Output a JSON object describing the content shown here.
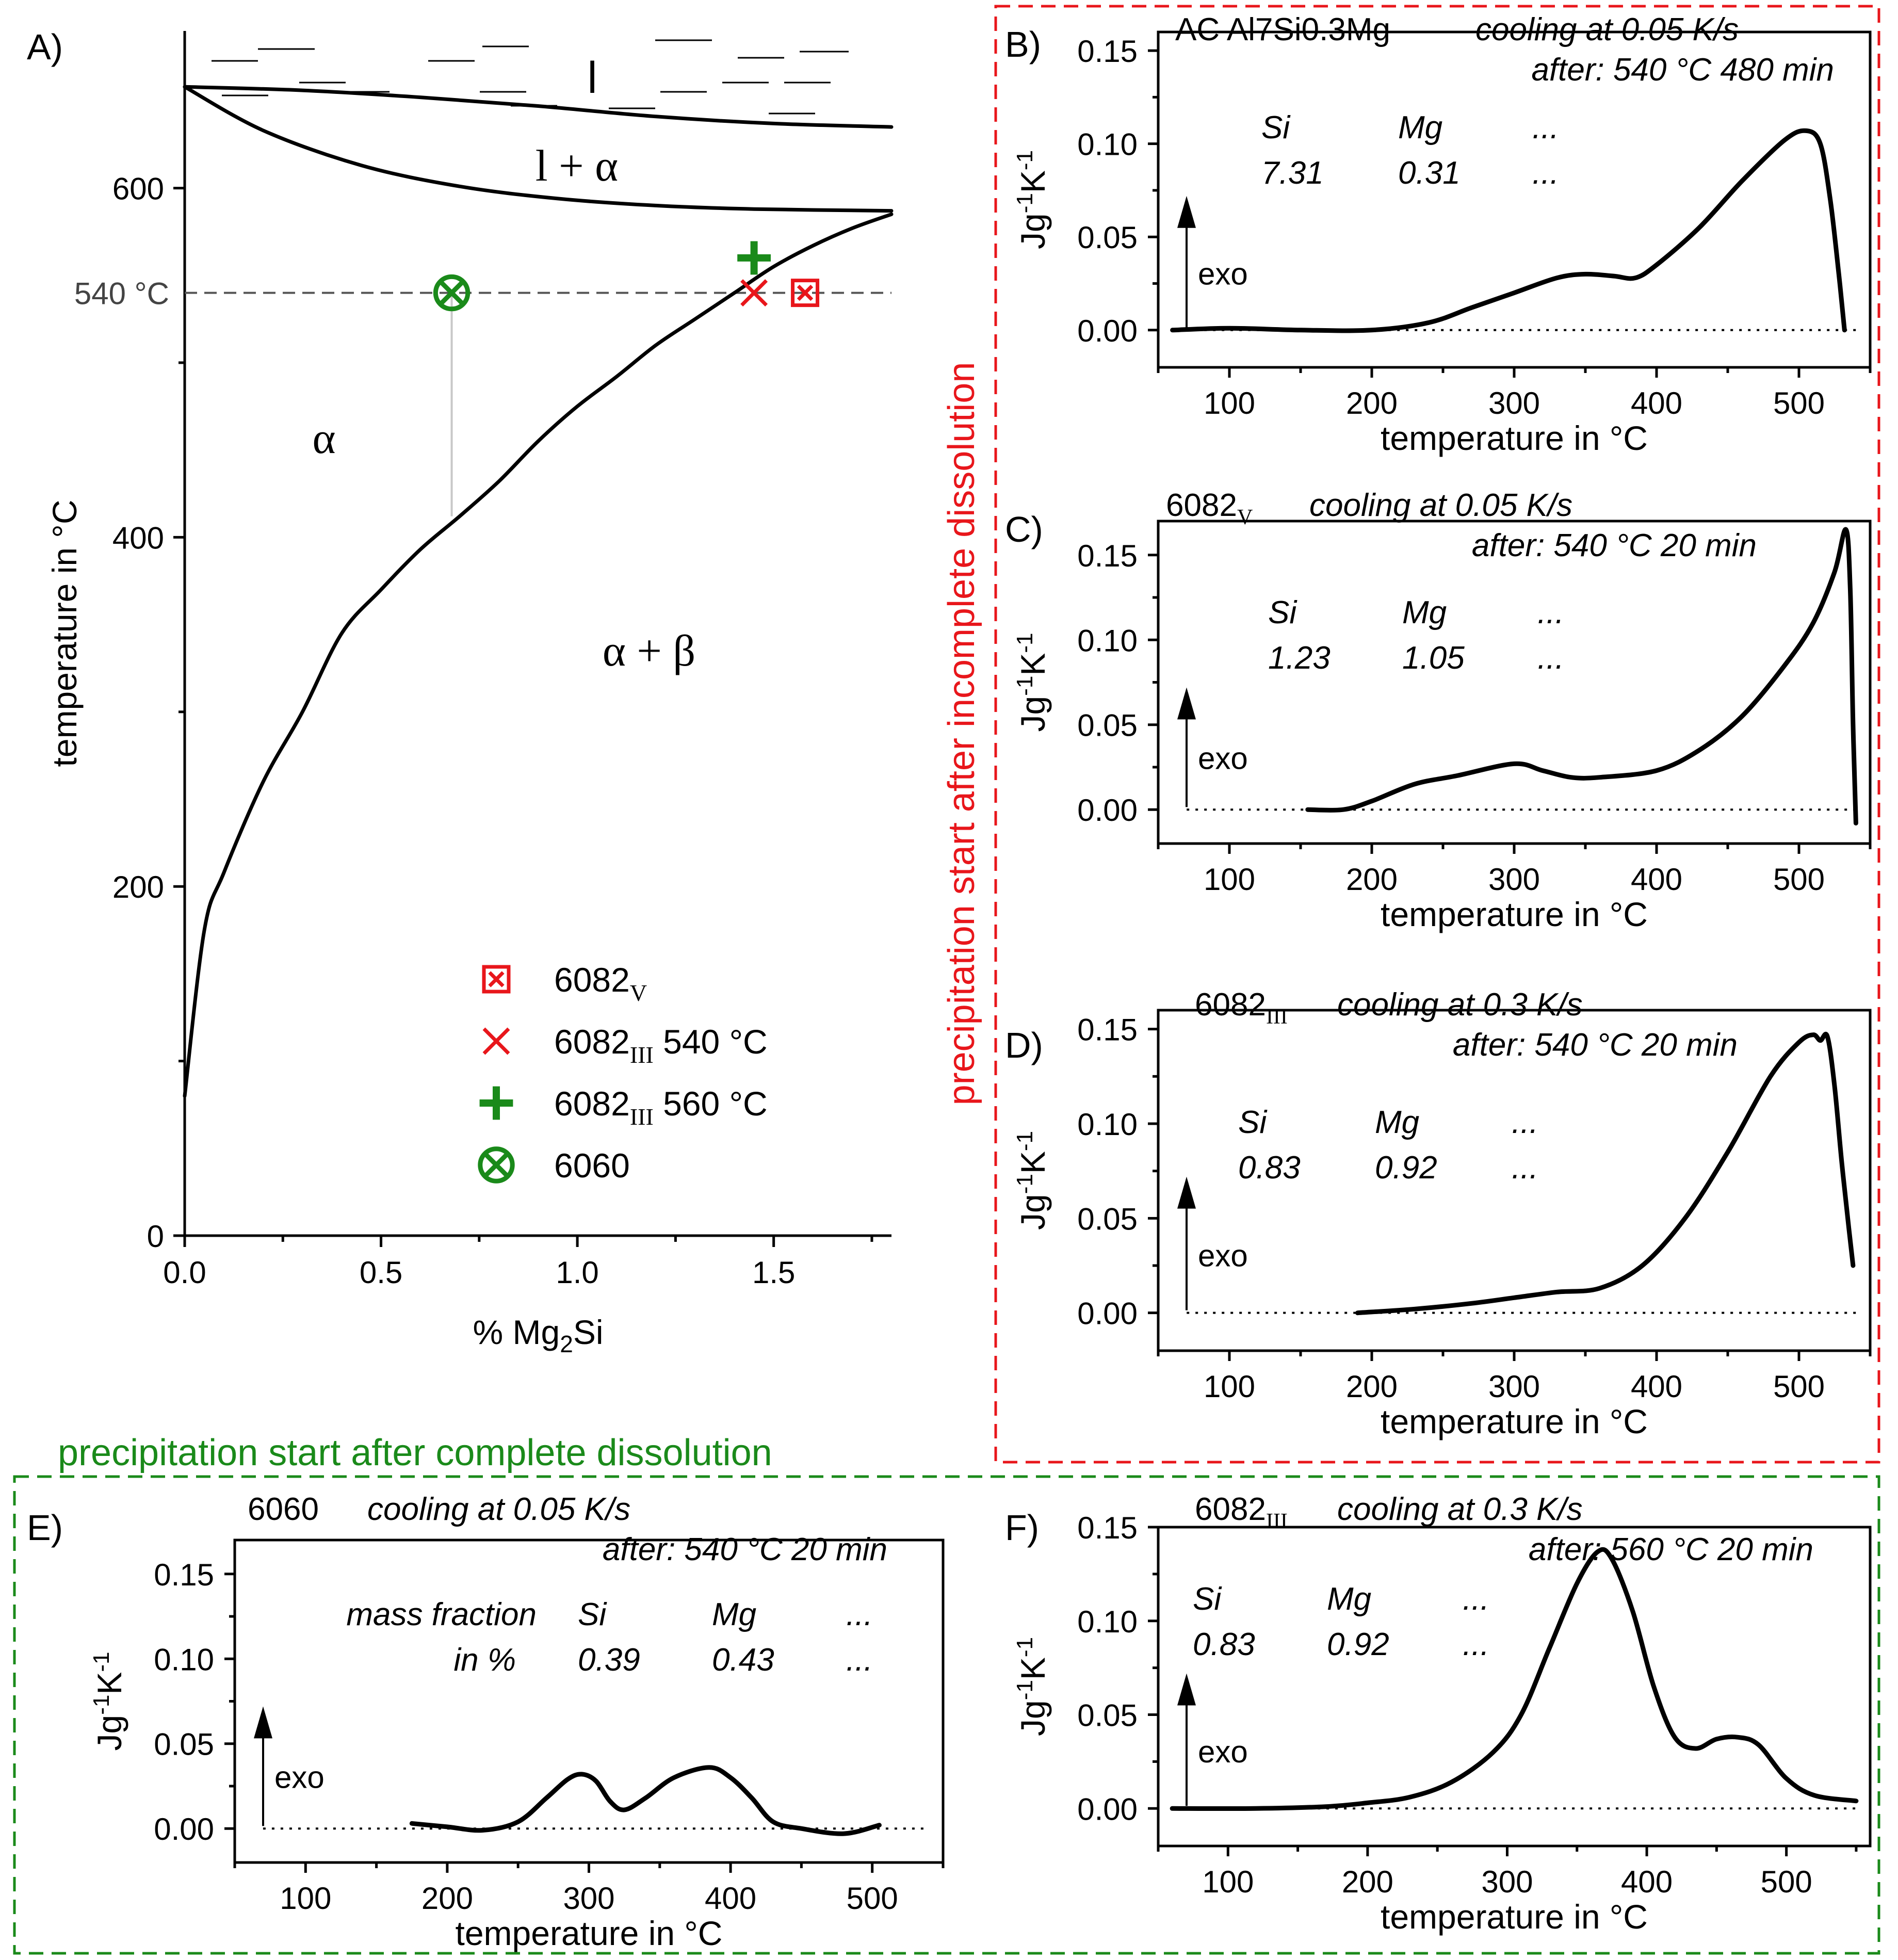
{
  "chart_data": [
    {
      "id": "A",
      "type": "line",
      "label": "A)",
      "title": "",
      "xlabel": "% Mg",
      "xlabel_sub": "2",
      "xlabel_tail": "Si",
      "ylabel": "temperature in °C",
      "xlim": [
        0,
        1.8
      ],
      "ylim": [
        0,
        690
      ],
      "xticks": [
        0.0,
        0.5,
        1.0,
        1.5
      ],
      "xtick_labels": [
        "0.0",
        "0.5",
        "1.0",
        "1.5"
      ],
      "yticks": [
        0,
        200,
        400,
        600
      ],
      "ytick_labels": [
        "0",
        "200",
        "400",
        "600"
      ],
      "hline": {
        "y": 540,
        "label": "540 °C"
      },
      "series": [
        {
          "name": "liquidus",
          "x": [
            0,
            0.3,
            0.6,
            0.9,
            1.2,
            1.5,
            1.8
          ],
          "y": [
            658,
            656,
            652,
            647,
            641,
            637,
            635
          ]
        },
        {
          "name": "solidus",
          "x": [
            0,
            0.2,
            0.45,
            0.7,
            0.95,
            1.2,
            1.45,
            1.8
          ],
          "y": [
            658,
            633,
            613,
            601,
            594,
            590,
            588,
            587
          ]
        },
        {
          "name": "solvus",
          "x": [
            0,
            0.05,
            0.1,
            0.2,
            0.3,
            0.4,
            0.5,
            0.6,
            0.7,
            0.8,
            0.9,
            1.0,
            1.1,
            1.2,
            1.3,
            1.4,
            1.5,
            1.6,
            1.7,
            1.8
          ],
          "y": [
            80,
            175,
            208,
            260,
            300,
            345,
            370,
            393,
            412,
            432,
            455,
            475,
            492,
            510,
            525,
            540,
            555,
            567,
            577,
            585
          ]
        }
      ],
      "markers": [
        {
          "name": "6082_V",
          "x": 1.58,
          "y": 540,
          "symbol": "boxed-x",
          "color": "#e8161b"
        },
        {
          "name": "6082_III 540 °C",
          "x": 1.45,
          "y": 540,
          "symbol": "x",
          "color": "#e8161b"
        },
        {
          "name": "6082_III 560 °C",
          "x": 1.45,
          "y": 560,
          "symbol": "plus",
          "color": "#1a8a1a"
        },
        {
          "name": "6060",
          "x": 0.68,
          "y": 540,
          "symbol": "circle-x",
          "color": "#1a8a1a"
        }
      ],
      "tie_line": {
        "x": 0.68,
        "y_top": 540,
        "y_bottom": 412
      },
      "regions": [
        "l",
        "l + α",
        "α",
        "α + β"
      ],
      "legend": [
        {
          "symbol": "boxed-x",
          "color": "#e8161b",
          "base": "6082",
          "sub": "V",
          "tail": ""
        },
        {
          "symbol": "x",
          "color": "#e8161b",
          "base": "6082",
          "sub": "III",
          "tail": " 540 °C"
        },
        {
          "symbol": "plus",
          "color": "#1a8a1a",
          "base": "6082",
          "sub": "III",
          "tail": " 560 °C"
        },
        {
          "symbol": "circle-x",
          "color": "#1a8a1a",
          "base": "6060",
          "sub": "",
          "tail": ""
        }
      ]
    },
    {
      "id": "B",
      "type": "line",
      "label": "B)",
      "xlabel": "temperature in °C",
      "ylabel_main": "Jg",
      "ylabel_sup1": "-1",
      "ylabel_mid": "K",
      "ylabel_sup2": "-1",
      "xlim": [
        50,
        550
      ],
      "ylim": [
        -0.02,
        0.16
      ],
      "xticks": [
        100,
        200,
        300,
        400,
        500
      ],
      "yticks": [
        0.0,
        0.05,
        0.1,
        0.15
      ],
      "ytick_labels": [
        "0.00",
        "0.05",
        "0.10",
        "0.15"
      ],
      "alloy": "AC Al7Si0.3Mg",
      "alloy_sub": "",
      "condition1": "cooling at 0.05 K/s",
      "condition2": "after: 540 °C 480 min",
      "comp_header": [
        "Si",
        "Mg",
        "..."
      ],
      "comp_values": [
        "7.31",
        "0.31",
        "..."
      ],
      "exo_label": "exo",
      "series": [
        {
          "name": "DSC",
          "x": [
            60,
            100,
            150,
            200,
            240,
            270,
            300,
            330,
            350,
            370,
            385,
            400,
            430,
            460,
            490,
            505,
            515,
            522,
            528,
            532
          ],
          "y": [
            0.0,
            0.001,
            0.0,
            0.0,
            0.004,
            0.012,
            0.02,
            0.028,
            0.03,
            0.029,
            0.028,
            0.035,
            0.055,
            0.08,
            0.102,
            0.107,
            0.1,
            0.07,
            0.03,
            0.0
          ]
        }
      ]
    },
    {
      "id": "C",
      "type": "line",
      "label": "C)",
      "xlabel": "temperature in °C",
      "ylabel_main": "Jg",
      "ylabel_sup1": "-1",
      "ylabel_mid": "K",
      "ylabel_sup2": "-1",
      "xlim": [
        50,
        550
      ],
      "ylim": [
        -0.02,
        0.17
      ],
      "xticks": [
        100,
        200,
        300,
        400,
        500
      ],
      "yticks": [
        0.0,
        0.05,
        0.1,
        0.15
      ],
      "ytick_labels": [
        "0.00",
        "0.05",
        "0.10",
        "0.15"
      ],
      "alloy": "6082",
      "alloy_sub": "V",
      "condition1": "cooling at 0.05 K/s",
      "condition2": "after: 540 °C 20 min",
      "comp_header": [
        "Si",
        "Mg",
        "..."
      ],
      "comp_values": [
        "1.23",
        "1.05",
        "..."
      ],
      "exo_label": "exo",
      "series": [
        {
          "name": "DSC",
          "x": [
            155,
            180,
            200,
            230,
            260,
            300,
            320,
            340,
            360,
            400,
            430,
            460,
            490,
            510,
            525,
            533,
            536,
            538,
            540
          ],
          "y": [
            0.0,
            0.0,
            0.005,
            0.015,
            0.02,
            0.027,
            0.023,
            0.019,
            0.019,
            0.023,
            0.035,
            0.055,
            0.085,
            0.11,
            0.14,
            0.165,
            0.13,
            0.05,
            -0.008
          ]
        }
      ]
    },
    {
      "id": "D",
      "type": "line",
      "label": "D)",
      "xlabel": "temperature in °C",
      "ylabel_main": "Jg",
      "ylabel_sup1": "-1",
      "ylabel_mid": "K",
      "ylabel_sup2": "-1",
      "xlim": [
        50,
        550
      ],
      "ylim": [
        -0.02,
        0.16
      ],
      "xticks": [
        100,
        200,
        300,
        400,
        500
      ],
      "yticks": [
        0.0,
        0.05,
        0.1,
        0.15
      ],
      "ytick_labels": [
        "0.00",
        "0.05",
        "0.10",
        "0.15"
      ],
      "alloy": "6082",
      "alloy_sub": "III",
      "condition1": "cooling at 0.3 K/s",
      "condition2": "after: 540 °C 20 min",
      "comp_header": [
        "Si",
        "Mg",
        "..."
      ],
      "comp_values": [
        "0.83",
        "0.92",
        "..."
      ],
      "exo_label": "exo",
      "series": [
        {
          "name": "DSC",
          "x": [
            190,
            230,
            270,
            300,
            330,
            360,
            390,
            420,
            450,
            480,
            500,
            510,
            515,
            520,
            525,
            530,
            535,
            538
          ],
          "y": [
            0.0,
            0.002,
            0.005,
            0.008,
            0.011,
            0.013,
            0.025,
            0.05,
            0.085,
            0.125,
            0.143,
            0.147,
            0.144,
            0.146,
            0.12,
            0.08,
            0.045,
            0.025
          ]
        }
      ]
    },
    {
      "id": "E",
      "type": "line",
      "label": "E)",
      "xlabel": "temperature in °C",
      "ylabel_main": "Jg",
      "ylabel_sup1": "-1",
      "ylabel_mid": "K",
      "ylabel_sup2": "-1",
      "xlim": [
        50,
        550
      ],
      "ylim": [
        -0.02,
        0.17
      ],
      "xticks": [
        100,
        200,
        300,
        400,
        500
      ],
      "yticks": [
        0.0,
        0.05,
        0.1,
        0.15
      ],
      "ytick_labels": [
        "0.00",
        "0.05",
        "0.10",
        "0.15"
      ],
      "alloy": "6060",
      "alloy_sub": "",
      "condition1": "cooling at 0.05 K/s",
      "condition2": "after: 540 °C 20 min",
      "comp_prefix1": "mass fraction",
      "comp_prefix2": "in %",
      "comp_header": [
        "Si",
        "Mg",
        "..."
      ],
      "comp_values": [
        "0.39",
        "0.43",
        "..."
      ],
      "exo_label": "exo",
      "series": [
        {
          "name": "DSC",
          "x": [
            175,
            200,
            225,
            250,
            270,
            285,
            295,
            305,
            315,
            325,
            340,
            360,
            385,
            400,
            415,
            430,
            450,
            480,
            505
          ],
          "y": [
            0.003,
            0.001,
            -0.001,
            0.004,
            0.018,
            0.029,
            0.032,
            0.028,
            0.016,
            0.011,
            0.018,
            0.03,
            0.036,
            0.03,
            0.018,
            0.004,
            0.0,
            -0.003,
            0.002
          ]
        }
      ]
    },
    {
      "id": "F",
      "type": "line",
      "label": "F)",
      "xlabel": "temperature in °C",
      "ylabel_main": "Jg",
      "ylabel_sup1": "-1",
      "ylabel_mid": "K",
      "ylabel_sup2": "-1",
      "xlim": [
        50,
        560
      ],
      "ylim": [
        -0.02,
        0.15
      ],
      "xticks": [
        100,
        200,
        300,
        400,
        500
      ],
      "yticks": [
        0.0,
        0.05,
        0.1,
        0.15
      ],
      "ytick_labels": [
        "0.00",
        "0.05",
        "0.10",
        "0.15"
      ],
      "alloy": "6082",
      "alloy_sub": "III",
      "condition1": "cooling at 0.3 K/s",
      "condition2": "after: 560 °C 20 min",
      "comp_header": [
        "Si",
        "Mg",
        "..."
      ],
      "comp_values": [
        "0.83",
        "0.92",
        "..."
      ],
      "exo_label": "exo",
      "series": [
        {
          "name": "DSC",
          "x": [
            60,
            120,
            170,
            200,
            230,
            260,
            290,
            310,
            330,
            350,
            365,
            375,
            390,
            405,
            420,
            435,
            450,
            465,
            480,
            500,
            520,
            550
          ],
          "y": [
            0.0,
            0.0,
            0.001,
            0.003,
            0.006,
            0.014,
            0.03,
            0.05,
            0.085,
            0.12,
            0.137,
            0.133,
            0.105,
            0.065,
            0.038,
            0.032,
            0.037,
            0.038,
            0.034,
            0.016,
            0.007,
            0.004
          ]
        }
      ]
    }
  ],
  "group_red": {
    "label": "precipitation start after incomplete dissolution",
    "color": "#e8161b"
  },
  "group_green": {
    "label": "precipitation start after complete dissolution",
    "color": "#1a8a1a"
  }
}
